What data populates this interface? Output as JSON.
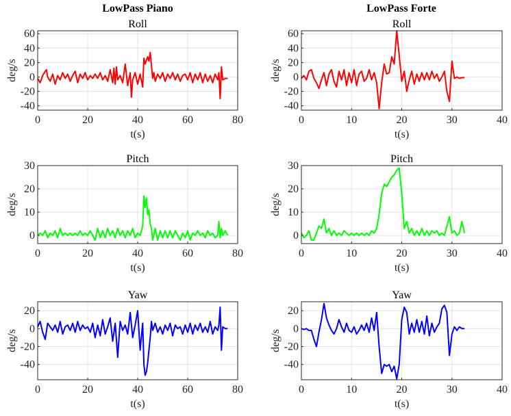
{
  "columns": [
    {
      "title": "LowPass Piano"
    },
    {
      "title": "LowPass Forte"
    }
  ],
  "chart_data": [
    {
      "type": "line",
      "id": "piano-roll",
      "title": "Roll",
      "xlabel": "t(s)",
      "ylabel": "deg/s",
      "color": "#ff0000",
      "xlim": [
        0,
        80
      ],
      "ylim": [
        -46,
        64
      ],
      "xticks": [
        0,
        20,
        40,
        60,
        80
      ],
      "yticks": [
        -40,
        -20,
        0,
        20,
        40,
        60
      ],
      "grid": true,
      "series": [
        {
          "x": [
            0,
            1,
            2,
            3,
            3.5,
            4,
            5,
            6,
            7,
            8,
            9,
            10,
            11,
            12,
            13,
            14,
            15,
            16,
            17,
            18,
            19,
            20,
            21,
            22,
            23,
            24,
            25,
            26,
            27,
            28,
            29,
            30,
            30.5,
            31,
            31.5,
            32,
            33,
            34,
            35,
            36,
            37,
            37.5,
            38,
            39,
            40,
            41,
            42,
            42.5,
            43,
            44,
            44.5,
            45,
            46,
            46.5,
            47,
            48,
            49,
            50,
            51,
            52,
            53,
            54,
            55,
            56,
            57,
            58,
            59,
            60,
            61,
            62,
            63,
            64,
            65,
            66,
            67,
            68,
            69,
            70,
            71,
            72,
            72.5,
            73,
            73.5,
            74,
            75,
            76
          ],
          "y": [
            -2,
            -8,
            2,
            8,
            10,
            0,
            -6,
            4,
            -10,
            2,
            -4,
            6,
            -2,
            4,
            -6,
            2,
            8,
            -8,
            4,
            -2,
            6,
            -4,
            2,
            -2,
            4,
            -2,
            6,
            -4,
            2,
            -6,
            10,
            -8,
            12,
            -10,
            14,
            -4,
            2,
            -8,
            18,
            -12,
            6,
            -28,
            -4,
            6,
            -10,
            4,
            -14,
            26,
            18,
            28,
            22,
            34,
            -2,
            6,
            -6,
            4,
            -2,
            6,
            -6,
            4,
            -2,
            6,
            -4,
            4,
            -6,
            2,
            4,
            -4,
            6,
            -8,
            4,
            -4,
            6,
            -8,
            4,
            -6,
            2,
            -8,
            4,
            -4,
            6,
            -30,
            14,
            -4,
            -2,
            -2
          ]
        }
      ]
    },
    {
      "type": "line",
      "id": "forte-roll",
      "title": "Roll",
      "xlabel": "t(s)",
      "ylabel": "deg/s",
      "color": "#ff0000",
      "xlim": [
        0,
        40
      ],
      "ylim": [
        -46,
        64
      ],
      "xticks": [
        0,
        10,
        20,
        30,
        40
      ],
      "yticks": [
        -40,
        -20,
        0,
        20,
        40,
        60
      ],
      "grid": true,
      "series": [
        {
          "x": [
            0,
            0.5,
            1,
            1.5,
            2,
            2.5,
            3,
            3.5,
            4,
            4.5,
            5,
            5.5,
            6,
            6.5,
            7,
            7.5,
            8,
            8.5,
            9,
            9.5,
            10,
            10.5,
            11,
            11.5,
            12,
            12.5,
            13,
            13.5,
            14,
            14.5,
            15,
            15.5,
            16,
            16.5,
            17,
            17.5,
            18,
            18.5,
            19,
            19.5,
            20,
            20.5,
            21,
            21.5,
            22,
            22.5,
            23,
            23.5,
            24,
            24.5,
            25,
            25.5,
            26,
            26.5,
            27,
            27.5,
            28,
            28.5,
            29,
            29.5,
            30,
            30.5,
            31,
            31.5,
            32,
            32.5
          ],
          "y": [
            -2,
            2,
            -4,
            8,
            10,
            -2,
            -8,
            -16,
            -4,
            6,
            -12,
            4,
            10,
            -6,
            -14,
            8,
            -4,
            10,
            -12,
            6,
            -8,
            10,
            -12,
            4,
            8,
            -6,
            -2,
            10,
            -4,
            6,
            -8,
            -44,
            -8,
            18,
            4,
            6,
            28,
            18,
            64,
            30,
            -6,
            8,
            -20,
            -4,
            8,
            -10,
            4,
            -6,
            6,
            -4,
            6,
            -4,
            8,
            -2,
            4,
            -6,
            0,
            8,
            -20,
            -34,
            22,
            -2,
            0,
            -2,
            -1,
            -1
          ]
        }
      ]
    },
    {
      "type": "line",
      "id": "piano-pitch",
      "title": "Pitch",
      "xlabel": "t(s)",
      "ylabel": "deg/s",
      "color": "#00ff00",
      "xlim": [
        0,
        80
      ],
      "ylim": [
        -3.5,
        30
      ],
      "xticks": [
        0,
        20,
        40,
        60,
        80
      ],
      "yticks": [
        0,
        10,
        20,
        30
      ],
      "grid": true,
      "series": [
        {
          "x": [
            0,
            1,
            2,
            3,
            4,
            5,
            6,
            7,
            8,
            9,
            10,
            11,
            12,
            13,
            14,
            15,
            16,
            17,
            18,
            19,
            20,
            21,
            22,
            23,
            24,
            25,
            26,
            27,
            28,
            29,
            30,
            31,
            32,
            33,
            34,
            35,
            36,
            37,
            38,
            39,
            40,
            41,
            42,
            42.5,
            43,
            43.5,
            44,
            44.5,
            45,
            45.5,
            46,
            47,
            48,
            49,
            50,
            51,
            52,
            53,
            54,
            55,
            56,
            57,
            58,
            59,
            60,
            61,
            62,
            63,
            64,
            65,
            66,
            67,
            68,
            69,
            70,
            71,
            72,
            72.5,
            73,
            73.5,
            74,
            75,
            76
          ],
          "y": [
            0,
            1,
            0,
            2,
            -1,
            1,
            0,
            2,
            -1,
            3,
            0,
            1,
            0,
            1,
            0,
            1,
            0,
            2,
            0,
            1,
            0,
            2,
            0,
            -2,
            3,
            -1,
            2,
            -1,
            3,
            0,
            2,
            -1,
            3,
            0,
            2,
            -1,
            2,
            0,
            3,
            -1,
            1,
            0,
            4,
            17,
            12,
            16,
            9,
            11,
            5,
            3,
            -2,
            3,
            -2,
            2,
            -1,
            2,
            -1,
            2,
            -1,
            2,
            0,
            -2,
            1,
            -1,
            2,
            -2,
            1,
            0,
            2,
            0,
            1,
            -1,
            2,
            0,
            1,
            -1,
            0,
            6,
            -1,
            3,
            0,
            2,
            0
          ]
        }
      ]
    },
    {
      "type": "line",
      "id": "forte-pitch",
      "title": "Pitch",
      "xlabel": "t(s)",
      "ylabel": "deg/s",
      "color": "#00ff00",
      "xlim": [
        0,
        40
      ],
      "ylim": [
        -3.5,
        30
      ],
      "xticks": [
        0,
        10,
        20,
        30,
        40
      ],
      "yticks": [
        0,
        10,
        20,
        30
      ],
      "grid": true,
      "series": [
        {
          "x": [
            0,
            0.5,
            1,
            1.5,
            2,
            2.5,
            3,
            3.5,
            4,
            4.5,
            5,
            5.5,
            6,
            6.5,
            7,
            7.5,
            8,
            8.5,
            9,
            9.5,
            10,
            10.5,
            11,
            11.5,
            12,
            12.5,
            13,
            13.5,
            14,
            14.5,
            15,
            15.5,
            16,
            16.5,
            17,
            17.5,
            18,
            18.5,
            19,
            19.5,
            20,
            20.5,
            21,
            21.5,
            22,
            22.5,
            23,
            23.5,
            24,
            24.5,
            25,
            25.5,
            26,
            26.5,
            27,
            27.5,
            28,
            28.5,
            29,
            29.5,
            30,
            30.5,
            31,
            31.5,
            32,
            32.5
          ],
          "y": [
            1,
            -1,
            0,
            2,
            -2,
            -2,
            1,
            4,
            3,
            7,
            1,
            3,
            0,
            2,
            0,
            1,
            0,
            2,
            1,
            0,
            1,
            0,
            1,
            0,
            1,
            0,
            1,
            0,
            2,
            1,
            3,
            9,
            18,
            22,
            21,
            23,
            25,
            26,
            28,
            29,
            18,
            3,
            6,
            1,
            3,
            0,
            2,
            0,
            3,
            0,
            2,
            0,
            2,
            1,
            2,
            0,
            1,
            0,
            4,
            8,
            1,
            2,
            0,
            1,
            6,
            1
          ]
        }
      ]
    },
    {
      "type": "line",
      "id": "piano-yaw",
      "title": "Yaw",
      "xlabel": "t(s)",
      "ylabel": "deg/s",
      "color": "#0000ff",
      "xlim": [
        0,
        80
      ],
      "ylim": [
        -57,
        30
      ],
      "xticks": [
        0,
        20,
        40,
        60,
        80
      ],
      "yticks": [
        -40,
        -20,
        0,
        20
      ],
      "grid": true,
      "series": [
        {
          "x": [
            0,
            1,
            2,
            3,
            4,
            5,
            6,
            7,
            8,
            9,
            10,
            11,
            12,
            13,
            14,
            15,
            16,
            17,
            18,
            19,
            20,
            21,
            22,
            23,
            24,
            25,
            26,
            27,
            28,
            29,
            30,
            31,
            32,
            33,
            34,
            35,
            36,
            37,
            38,
            39,
            40,
            41,
            42,
            42.5,
            43,
            43.5,
            44,
            45,
            45.5,
            46,
            47,
            48,
            49,
            50,
            51,
            52,
            53,
            54,
            55,
            56,
            57,
            58,
            59,
            60,
            61,
            62,
            63,
            64,
            65,
            66,
            67,
            68,
            69,
            70,
            71,
            72,
            72.5,
            73,
            73.5,
            74,
            75,
            76
          ],
          "y": [
            2,
            8,
            -4,
            -12,
            6,
            2,
            -2,
            4,
            -4,
            8,
            -6,
            2,
            4,
            -2,
            6,
            -4,
            8,
            -2,
            4,
            0,
            2,
            -4,
            6,
            -10,
            4,
            -8,
            10,
            -6,
            2,
            12,
            -14,
            6,
            -32,
            8,
            -2,
            4,
            -6,
            18,
            -10,
            4,
            20,
            -24,
            6,
            -40,
            -52,
            -48,
            -38,
            -10,
            8,
            -2,
            6,
            -4,
            2,
            -6,
            4,
            -2,
            6,
            -8,
            4,
            0,
            2,
            -6,
            4,
            -4,
            6,
            -6,
            4,
            -2,
            6,
            -4,
            2,
            -4,
            8,
            -6,
            2,
            -2,
            4,
            24,
            -24,
            2,
            0,
            0
          ]
        }
      ]
    },
    {
      "type": "line",
      "id": "forte-yaw",
      "title": "Yaw",
      "xlabel": "t(s)",
      "ylabel": "deg/s",
      "color": "#0000ff",
      "xlim": [
        0,
        40
      ],
      "ylim": [
        -57,
        30
      ],
      "xticks": [
        0,
        10,
        20,
        30,
        40
      ],
      "yticks": [
        -40,
        -20,
        0,
        20
      ],
      "grid": true,
      "series": [
        {
          "x": [
            0,
            0.5,
            1,
            1.5,
            2,
            2.5,
            3,
            3.5,
            4,
            4.5,
            5,
            5.5,
            6,
            6.5,
            7,
            7.5,
            8,
            8.5,
            9,
            9.5,
            10,
            10.5,
            11,
            11.5,
            12,
            12.5,
            13,
            13.5,
            14,
            14.5,
            15,
            15.5,
            16,
            16.5,
            17,
            17.5,
            18,
            18.5,
            19,
            19.5,
            20,
            20.5,
            21,
            21.5,
            22,
            22.5,
            23,
            23.5,
            24,
            24.5,
            25,
            25.5,
            26,
            26.5,
            27,
            27.5,
            28,
            28.5,
            29,
            29.5,
            30,
            30.5,
            31,
            31.5,
            32,
            32.5
          ],
          "y": [
            0,
            -1,
            0,
            -2,
            -2,
            -12,
            -20,
            -4,
            10,
            28,
            12,
            4,
            -2,
            -6,
            0,
            10,
            2,
            -4,
            6,
            -2,
            -4,
            2,
            -6,
            -2,
            4,
            -2,
            6,
            -4,
            12,
            -2,
            18,
            -20,
            -50,
            -40,
            -42,
            -40,
            -48,
            -42,
            -56,
            -40,
            10,
            24,
            18,
            -6,
            6,
            -4,
            10,
            -4,
            8,
            -6,
            14,
            -8,
            6,
            -4,
            2,
            6,
            22,
            26,
            18,
            -30,
            -6,
            2,
            -2,
            2,
            0,
            0
          ]
        }
      ]
    }
  ]
}
